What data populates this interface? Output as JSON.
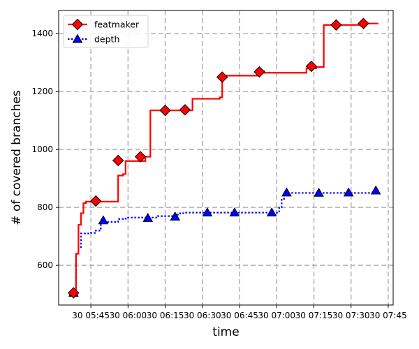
{
  "chart_data": {
    "type": "line",
    "xlabel": "time",
    "ylabel": "# of covered branches",
    "x_unit": "minutes",
    "xlim": [
      "05:32",
      "07:47"
    ],
    "ylim": [
      463,
      1480
    ],
    "xticks": [
      {
        "value": "05:45",
        "label": "30 05:45"
      },
      {
        "value": "06:00",
        "label": "30 06:00"
      },
      {
        "value": "06:15",
        "label": "30 06:15"
      },
      {
        "value": "06:30",
        "label": "30 06:30"
      },
      {
        "value": "06:45",
        "label": "30 06:45"
      },
      {
        "value": "07:00",
        "label": "30 07:00"
      },
      {
        "value": "07:15",
        "label": "30 07:15"
      },
      {
        "value": "07:30",
        "label": "30 07:30"
      },
      {
        "value": "07:45",
        "label": "30 07:45"
      }
    ],
    "yticks": [
      600,
      800,
      1000,
      1200,
      1400
    ],
    "grid": true,
    "legend": "top-left",
    "series": [
      {
        "name": "featmaker",
        "color": "#ff0000",
        "line_style": "solid",
        "marker": "diamond",
        "marker_color": "#ff0000",
        "steps": [
          [
            "05:38",
            505
          ],
          [
            "05:39",
            640
          ],
          [
            "05:40",
            740
          ],
          [
            "05:41",
            780
          ],
          [
            "05:42",
            815
          ],
          [
            "05:43",
            820
          ],
          [
            "05:52",
            820
          ],
          [
            "05:55",
            820
          ],
          [
            "05:56",
            910
          ],
          [
            "05:58",
            915
          ],
          [
            "05:59",
            960
          ],
          [
            "06:07",
            975
          ],
          [
            "06:09",
            1135
          ],
          [
            "06:22",
            1135
          ],
          [
            "06:26",
            1175
          ],
          [
            "06:33",
            1175
          ],
          [
            "06:37",
            1180
          ],
          [
            "06:38",
            1255
          ],
          [
            "06:47",
            1255
          ],
          [
            "06:53",
            1270
          ],
          [
            "06:55",
            1265
          ],
          [
            "07:09",
            1265
          ],
          [
            "07:12",
            1280
          ],
          [
            "07:16",
            1285
          ],
          [
            "07:19",
            1430
          ],
          [
            "07:29",
            1430
          ],
          [
            "07:35",
            1435
          ],
          [
            "07:41",
            1435
          ]
        ],
        "markers": [
          [
            "05:38",
            505
          ],
          [
            "05:47",
            822
          ],
          [
            "05:56",
            962
          ],
          [
            "06:05",
            975
          ],
          [
            "06:15",
            1135
          ],
          [
            "06:23",
            1137
          ],
          [
            "06:38",
            1250
          ],
          [
            "06:53",
            1268
          ],
          [
            "07:14",
            1287
          ],
          [
            "07:24",
            1430
          ],
          [
            "07:35",
            1435
          ]
        ]
      },
      {
        "name": "depth",
        "color": "#0000ff",
        "line_style": "dotted",
        "marker": "triangle",
        "marker_color": "#0000ff",
        "steps": [
          [
            "05:38",
            505
          ],
          [
            "05:39",
            640
          ],
          [
            "05:40",
            660
          ],
          [
            "05:41",
            710
          ],
          [
            "05:45",
            712
          ],
          [
            "05:47",
            720
          ],
          [
            "05:49",
            750
          ],
          [
            "05:51",
            750
          ],
          [
            "05:56",
            760
          ],
          [
            "05:59",
            762
          ],
          [
            "06:00",
            765
          ],
          [
            "06:10",
            765
          ],
          [
            "06:12",
            770
          ],
          [
            "06:18",
            770
          ],
          [
            "06:19",
            775
          ],
          [
            "06:21",
            780
          ],
          [
            "06:23",
            782
          ],
          [
            "06:55",
            782
          ],
          [
            "07:01",
            800
          ],
          [
            "07:02",
            830
          ],
          [
            "07:03",
            850
          ],
          [
            "07:41",
            855
          ]
        ],
        "markers": [
          [
            "05:38",
            505
          ],
          [
            "05:50",
            755
          ],
          [
            "06:08",
            763
          ],
          [
            "06:19",
            768
          ],
          [
            "06:32",
            782
          ],
          [
            "06:43",
            782
          ],
          [
            "06:58",
            782
          ],
          [
            "07:04",
            851
          ],
          [
            "07:17",
            850
          ],
          [
            "07:29",
            851
          ],
          [
            "07:40",
            858
          ]
        ]
      }
    ]
  }
}
